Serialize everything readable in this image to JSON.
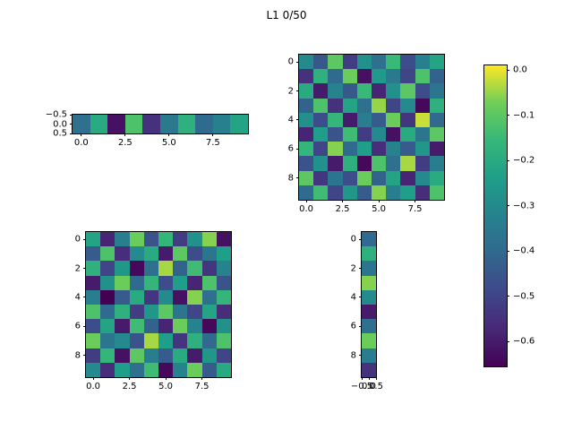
{
  "title": "L1 0/50",
  "colors": {
    "background": "#ffffff",
    "text": "#000000",
    "spine": "#000000"
  },
  "colormap": {
    "name": "viridis",
    "stops": [
      "#440154",
      "#482878",
      "#3e4989",
      "#31688e",
      "#26828e",
      "#1f9e89",
      "#35b779",
      "#6ece58",
      "#fde725"
    ]
  },
  "chart_data": [
    {
      "type": "heatmap",
      "name": "weight-row-strip",
      "rows": 1,
      "cols": 10,
      "x_ticks": [
        "0.0",
        "2.5",
        "5.0",
        "7.5"
      ],
      "y_ticks": [
        "−0.5",
        "0.0",
        "0.5"
      ],
      "values": [
        [
          -0.38,
          -0.2,
          -0.62,
          -0.12,
          -0.55,
          -0.35,
          -0.18,
          -0.4,
          -0.33,
          -0.22
        ]
      ]
    },
    {
      "type": "heatmap",
      "name": "weight-matrix-top",
      "rows": 10,
      "cols": 10,
      "x_ticks": [
        "0.0",
        "2.5",
        "5.0",
        "7.5"
      ],
      "y_ticks": [
        "0",
        "2",
        "4",
        "6",
        "8"
      ],
      "values": [
        [
          -0.3,
          -0.45,
          -0.1,
          -0.52,
          -0.28,
          -0.38,
          -0.15,
          -0.48,
          -0.33,
          -0.22
        ],
        [
          -0.55,
          -0.18,
          -0.4,
          -0.08,
          -0.62,
          -0.25,
          -0.35,
          -0.5,
          -0.12,
          -0.42
        ],
        [
          -0.2,
          -0.6,
          -0.32,
          -0.45,
          -0.15,
          -0.58,
          -0.28,
          -0.1,
          -0.48,
          -0.36
        ],
        [
          -0.42,
          -0.12,
          -0.55,
          -0.22,
          -0.38,
          -0.05,
          -0.5,
          -0.3,
          -0.64,
          -0.18
        ],
        [
          -0.28,
          -0.48,
          -0.16,
          -0.6,
          -0.34,
          -0.44,
          -0.08,
          -0.54,
          -0.02,
          -0.4
        ],
        [
          -0.58,
          -0.24,
          -0.46,
          -0.14,
          -0.52,
          -0.3,
          -0.62,
          -0.2,
          -0.36,
          -0.1
        ],
        [
          -0.16,
          -0.5,
          -0.06,
          -0.4,
          -0.24,
          -0.56,
          -0.32,
          -0.44,
          -0.26,
          -0.6
        ],
        [
          -0.46,
          -0.28,
          -0.6,
          -0.18,
          -0.64,
          -0.12,
          -0.38,
          -0.04,
          -0.52,
          -0.34
        ],
        [
          -0.1,
          -0.54,
          -0.36,
          -0.48,
          -0.08,
          -0.42,
          -0.22,
          -0.58,
          -0.3,
          -0.2
        ],
        [
          -0.4,
          -0.14,
          -0.5,
          -0.26,
          -0.44,
          -0.06,
          -0.34,
          -0.24,
          -0.56,
          -0.12
        ]
      ]
    },
    {
      "type": "heatmap",
      "name": "weight-matrix-bottom",
      "rows": 10,
      "cols": 10,
      "x_ticks": [
        "0.0",
        "2.5",
        "5.0",
        "7.5"
      ],
      "y_ticks": [
        "0",
        "2",
        "4",
        "6",
        "8"
      ],
      "values": [
        [
          -0.22,
          -0.58,
          -0.34,
          -0.08,
          -0.46,
          -0.16,
          -0.52,
          -0.28,
          -0.06,
          -0.62
        ],
        [
          -0.44,
          -0.12,
          -0.56,
          -0.3,
          -0.2,
          -0.6,
          -0.1,
          -0.48,
          -0.36,
          -0.24
        ],
        [
          -0.18,
          -0.5,
          -0.26,
          -0.64,
          -0.38,
          -0.04,
          -0.42,
          -0.14,
          -0.54,
          -0.32
        ],
        [
          -0.6,
          -0.28,
          -0.08,
          -0.4,
          -0.16,
          -0.48,
          -0.24,
          -0.58,
          -0.12,
          -0.46
        ],
        [
          -0.34,
          -0.66,
          -0.44,
          -0.2,
          -0.54,
          -0.3,
          -0.62,
          -0.06,
          -0.38,
          -0.16
        ],
        [
          -0.12,
          -0.4,
          -0.18,
          -0.52,
          -0.26,
          -0.1,
          -0.36,
          -0.5,
          -0.22,
          -0.56
        ],
        [
          -0.48,
          -0.22,
          -0.6,
          -0.14,
          -0.42,
          -0.58,
          -0.08,
          -0.32,
          -0.64,
          -0.28
        ],
        [
          -0.08,
          -0.36,
          -0.3,
          -0.46,
          -0.04,
          -0.24,
          -0.54,
          -0.18,
          -0.4,
          -0.12
        ],
        [
          -0.52,
          -0.16,
          -0.62,
          -0.1,
          -0.34,
          -0.44,
          -0.2,
          -0.6,
          -0.26,
          -0.5
        ],
        [
          -0.3,
          -0.56,
          -0.24,
          -0.38,
          -0.14,
          -0.64,
          -0.32,
          -0.08,
          -0.44,
          -0.2
        ]
      ]
    },
    {
      "type": "heatmap",
      "name": "weight-column-strip",
      "rows": 10,
      "cols": 1,
      "x_ticks": [
        "−0.5",
        "0.0",
        "0.5"
      ],
      "y_ticks": [
        "0",
        "2",
        "4",
        "6",
        "8"
      ],
      "values": [
        [
          -0.4
        ],
        [
          -0.18
        ],
        [
          -0.36
        ],
        [
          -0.06
        ],
        [
          -0.3
        ],
        [
          -0.6
        ],
        [
          -0.38
        ],
        [
          -0.08
        ],
        [
          -0.34
        ],
        [
          -0.55
        ]
      ]
    },
    {
      "type": "colorbar",
      "name": "value-colorbar",
      "orientation": "vertical",
      "ticks": [
        "0.0",
        "−0.1",
        "−0.2",
        "−0.3",
        "−0.4",
        "−0.5",
        "−0.6"
      ],
      "tick_values": [
        0.0,
        -0.1,
        -0.2,
        -0.3,
        -0.4,
        -0.5,
        -0.6
      ],
      "vmin": -0.655,
      "vmax": 0.01
    }
  ]
}
